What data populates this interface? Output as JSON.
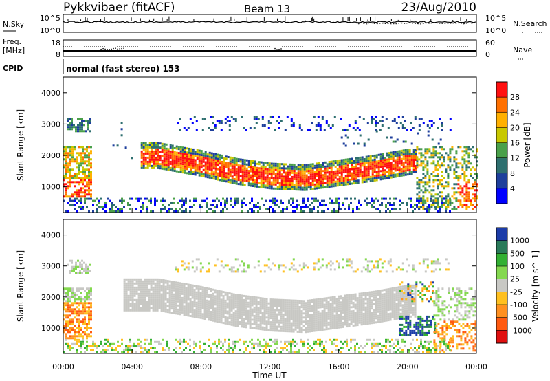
{
  "header": {
    "radar": "Pykkvibaer (fitACF)",
    "beam": "Beam 13",
    "date": "23/Aug/2010"
  },
  "sky_panel": {
    "left_label": "N.Sky",
    "left_ticks": [
      "10^5",
      "10^0"
    ],
    "right_label": "N.Search",
    "right_ticks": [
      "10^5",
      "10^0"
    ]
  },
  "freq_panel": {
    "left_label_1": "Freq.",
    "left_label_2": "[MHz]",
    "left_ticks": [
      "18",
      "8"
    ],
    "right_label": "Nave",
    "right_ticks": [
      "60",
      "0"
    ]
  },
  "cpid_panel": {
    "label": "CPID",
    "text": "normal (fast stereo) 153"
  },
  "x_axis": {
    "label": "Time UT",
    "ticks": [
      "00:00",
      "04:00",
      "08:00",
      "12:00",
      "16:00",
      "20:00",
      "00:00"
    ]
  },
  "colors": {
    "power": [
      "#0000ff",
      "#1e3f9c",
      "#2e6f6f",
      "#4aa04a",
      "#c8c800",
      "#ffb000",
      "#ff7000",
      "#ff1010"
    ],
    "velocity_pos": [
      "#1c3ca8",
      "#2a7a5a",
      "#33b033",
      "#84d850"
    ],
    "velocity_gray": "#c8c8c4",
    "velocity_neg": [
      "#ffc020",
      "#ff9020",
      "#ff5a10",
      "#e01010"
    ]
  },
  "chart_data": [
    {
      "type": "heatmap",
      "title": "",
      "quantity": "Power",
      "ylabel": "Slant Range [km]",
      "xlabel": "",
      "ylim": [
        180,
        4500
      ],
      "xlim": [
        0,
        24
      ],
      "yticks": [
        "1000",
        "2000",
        "3000",
        "4000"
      ],
      "colorbar": {
        "label": "Power [dB]",
        "ticks": [
          "4",
          "8",
          "12",
          "16",
          "20",
          "24",
          "28"
        ],
        "range": [
          0,
          32
        ]
      },
      "features": [
        {
          "name": "main band",
          "t": [
            5.5,
            8,
            10,
            12,
            14,
            16,
            18,
            20
          ],
          "range": [
            2000,
            1750,
            1500,
            1350,
            1300,
            1450,
            1600,
            1800
          ],
          "power": 24
        },
        {
          "name": "near range early",
          "t": [
            0,
            1.5
          ],
          "range": [
            800,
            2200
          ],
          "power": 20
        },
        {
          "name": "far range echoes",
          "t": [
            0,
            24
          ],
          "range": [
            2800,
            3200
          ],
          "power": 8
        },
        {
          "name": "near range late",
          "t": [
            22.5,
            24
          ],
          "range": [
            400,
            2200
          ],
          "power": 22
        },
        {
          "name": "ground scatter",
          "t": [
            0,
            22
          ],
          "range": [
            200,
            600
          ],
          "power": 6
        }
      ]
    },
    {
      "type": "heatmap",
      "title": "",
      "quantity": "Velocity",
      "ylabel": "Slant Range [km]",
      "xlabel": "Time UT",
      "ylim": [
        180,
        4500
      ],
      "xlim": [
        0,
        24
      ],
      "yticks": [
        "1000",
        "2000",
        "3000",
        "4000"
      ],
      "colorbar": {
        "label": "Velocity [m s^-1]",
        "ticks": [
          "1000",
          "500",
          "100",
          "25",
          "-25",
          "-100",
          "-500",
          "-1000"
        ]
      },
      "features": [
        {
          "name": "main band",
          "t": [
            3.5,
            20
          ],
          "range": [
            1000,
            2300
          ],
          "velocity": 0
        },
        {
          "name": "early near range",
          "t": [
            0,
            1.5
          ],
          "range": [
            800,
            1800
          ],
          "velocity": -300
        },
        {
          "name": "dusk positive",
          "t": [
            19.5,
            21.5
          ],
          "range": [
            900,
            1300
          ],
          "velocity": 600
        },
        {
          "name": "late near range",
          "t": [
            23,
            24
          ],
          "range": [
            300,
            1500
          ],
          "velocity": -400
        }
      ]
    }
  ]
}
